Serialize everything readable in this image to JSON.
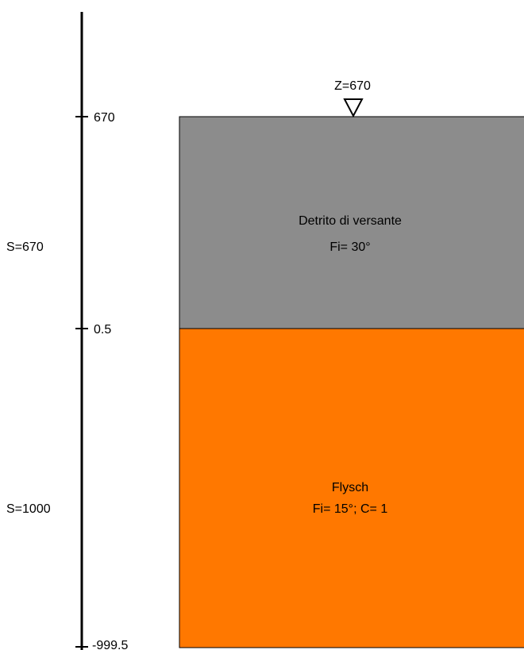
{
  "water_table": {
    "label": "Z=670"
  },
  "depth_axis": {
    "ticks": [
      {
        "label": "670"
      },
      {
        "label": "0.5"
      },
      {
        "label": "-999.5"
      }
    ]
  },
  "layers": [
    {
      "thickness_label": "S=670",
      "name": "Detrito di versante",
      "params": "Fi= 30°",
      "color": "#8c8c8c"
    },
    {
      "thickness_label": "S=1000",
      "name": "Flysch",
      "params": "Fi= 15°; C= 1",
      "color": "#ff7800"
    }
  ],
  "colors": {
    "axis": "#000000",
    "border": "#000000"
  }
}
